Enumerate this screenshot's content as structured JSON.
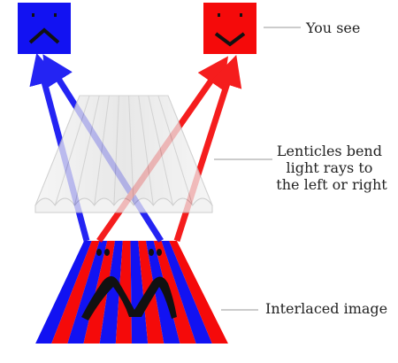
{
  "labels": {
    "you_see": "You see",
    "lenticles": [
      "Lenticles bend",
      "light rays to",
      "the left or right"
    ],
    "interlaced": "Interlaced image"
  },
  "colors": {
    "blue": "#1212f2",
    "red": "#f50a0a",
    "face_features": "#111111",
    "lens": "#e6e6e6",
    "leader_line": "#999999"
  },
  "faces": {
    "left": {
      "color": "blue",
      "expression": "frown"
    },
    "right": {
      "color": "red",
      "expression": "smile"
    }
  },
  "icons": {
    "face_left": "frown-face-icon",
    "face_right": "smile-face-icon"
  }
}
